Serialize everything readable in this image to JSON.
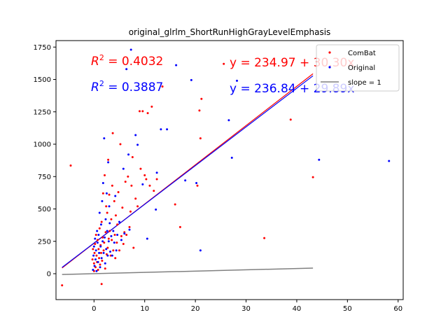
{
  "chart_data": {
    "type": "scatter",
    "title": "original_glrlm_ShortRunHighGrayLevelEmphasis",
    "xlabel": "",
    "ylabel": "",
    "xlim": [
      -7.5,
      61
    ],
    "ylim": [
      -200,
      1800
    ],
    "xticks": [
      "0",
      "10",
      "20",
      "30",
      "40",
      "50",
      "60"
    ],
    "xtick_values": [
      0,
      10,
      20,
      30,
      40,
      50,
      60
    ],
    "yticks": [
      "0",
      "250",
      "500",
      "750",
      "1000",
      "1250",
      "1500",
      "1750"
    ],
    "ytick_values": [
      0,
      250,
      500,
      750,
      1000,
      1250,
      1500,
      1750
    ],
    "grid": false,
    "legend": {
      "position": "top-right",
      "entries": [
        "ComBat",
        "Original",
        "slope = 1"
      ]
    },
    "annotations": [
      {
        "id": "r2-combat",
        "prefix": "R",
        "sup": "2",
        "text": " = 0.4032",
        "color": "#ff0000"
      },
      {
        "id": "r2-original",
        "prefix": "R",
        "sup": "2",
        "text": " = 0.3887",
        "color": "#0000ff"
      },
      {
        "id": "eq-combat",
        "text": "y = 234.97 + 30.30x",
        "color": "#ff0000"
      },
      {
        "id": "eq-original",
        "text": "y = 236.84 + 29.89x",
        "color": "#0000ff"
      }
    ],
    "series": [
      {
        "name": "ComBat",
        "kind": "scatter",
        "color": "#ff0000",
        "points": [
          [
            -6.3,
            -90
          ],
          [
            -4.6,
            835
          ],
          [
            -0.3,
            110
          ],
          [
            -0.2,
            190
          ],
          [
            0,
            20
          ],
          [
            0,
            80
          ],
          [
            0.1,
            160
          ],
          [
            0.2,
            230
          ],
          [
            0.3,
            50
          ],
          [
            0.4,
            300
          ],
          [
            0.5,
            140
          ],
          [
            0.6,
            90
          ],
          [
            0.7,
            260
          ],
          [
            0.8,
            30
          ],
          [
            0.9,
            190
          ],
          [
            1,
            120
          ],
          [
            1.1,
            350
          ],
          [
            1.2,
            70
          ],
          [
            1.3,
            220
          ],
          [
            1.4,
            160
          ],
          [
            1.5,
            400
          ],
          [
            1.5,
            -80
          ],
          [
            1.6,
            100
          ],
          [
            1.7,
            280
          ],
          [
            1.8,
            620
          ],
          [
            1.9,
            180
          ],
          [
            2,
            240
          ],
          [
            2.1,
            760
          ],
          [
            2.2,
            40
          ],
          [
            2.3,
            320
          ],
          [
            2.4,
            520
          ],
          [
            2.5,
            150
          ],
          [
            2.6,
            470
          ],
          [
            2.7,
            200
          ],
          [
            2.8,
            880
          ],
          [
            2.9,
            270
          ],
          [
            3,
            610
          ],
          [
            3.1,
            330
          ],
          [
            3.3,
            140
          ],
          [
            3.4,
            420
          ],
          [
            3.5,
            260
          ],
          [
            3.6,
            680
          ],
          [
            3.7,
            1085
          ],
          [
            3.8,
            180
          ],
          [
            4,
            560
          ],
          [
            4.1,
            300
          ],
          [
            4.2,
            120
          ],
          [
            4.3,
            450
          ],
          [
            4.5,
            240
          ],
          [
            4.6,
            380
          ],
          [
            4.8,
            630
          ],
          [
            5,
            180
          ],
          [
            5.2,
            1000
          ],
          [
            5.4,
            290
          ],
          [
            5.6,
            510
          ],
          [
            5.8,
            230
          ],
          [
            6,
            320
          ],
          [
            6.2,
            710
          ],
          [
            6.4,
            300
          ],
          [
            6.7,
            750
          ],
          [
            7,
            360
          ],
          [
            7.2,
            480
          ],
          [
            7.4,
            680
          ],
          [
            7.6,
            900
          ],
          [
            7.8,
            200
          ],
          [
            8.2,
            580
          ],
          [
            8.6,
            520
          ],
          [
            9,
            1255
          ],
          [
            9.2,
            810
          ],
          [
            9.6,
            1255
          ],
          [
            10,
            760
          ],
          [
            10.3,
            730
          ],
          [
            10.6,
            1240
          ],
          [
            11,
            680
          ],
          [
            11.4,
            1290
          ],
          [
            11.8,
            640
          ],
          [
            12.4,
            730
          ],
          [
            13.5,
            1445
          ],
          [
            16,
            535
          ],
          [
            17,
            360
          ],
          [
            20.4,
            680
          ],
          [
            20.8,
            1260
          ],
          [
            21,
            1045
          ],
          [
            21.2,
            1350
          ],
          [
            25.6,
            1620
          ],
          [
            33.6,
            275
          ],
          [
            38.8,
            1190
          ],
          [
            43.2,
            745
          ]
        ]
      },
      {
        "name": "Original",
        "kind": "scatter",
        "color": "#0000ff",
        "points": [
          [
            -0.2,
            30
          ],
          [
            -0.1,
            140
          ],
          [
            0,
            210
          ],
          [
            0.1,
            60
          ],
          [
            0.2,
            270
          ],
          [
            0.3,
            110
          ],
          [
            0.4,
            180
          ],
          [
            0.5,
            20
          ],
          [
            0.6,
            330
          ],
          [
            0.7,
            240
          ],
          [
            0.8,
            90
          ],
          [
            0.9,
            300
          ],
          [
            1,
            160
          ],
          [
            1.1,
            470
          ],
          [
            1.2,
            50
          ],
          [
            1.3,
            210
          ],
          [
            1.4,
            380
          ],
          [
            1.5,
            120
          ],
          [
            1.6,
            560
          ],
          [
            1.7,
            250
          ],
          [
            1.8,
            700
          ],
          [
            1.9,
            160
          ],
          [
            2,
            1045
          ],
          [
            2.1,
            280
          ],
          [
            2.2,
            80
          ],
          [
            2.3,
            420
          ],
          [
            2.4,
            190
          ],
          [
            2.5,
            620
          ],
          [
            2.6,
            330
          ],
          [
            2.7,
            140
          ],
          [
            2.8,
            860
          ],
          [
            2.9,
            250
          ],
          [
            3,
            520
          ],
          [
            3.1,
            390
          ],
          [
            3.2,
            170
          ],
          [
            3.4,
            290
          ],
          [
            3.6,
            140
          ],
          [
            3.8,
            330
          ],
          [
            4,
            240
          ],
          [
            4.2,
            600
          ],
          [
            4.4,
            180
          ],
          [
            4.6,
            300
          ],
          [
            5,
            400
          ],
          [
            5.4,
            260
          ],
          [
            5.8,
            810
          ],
          [
            6,
            310
          ],
          [
            6.4,
            1580
          ],
          [
            6.8,
            920
          ],
          [
            7,
            340
          ],
          [
            7.3,
            1730
          ],
          [
            8.2,
            1070
          ],
          [
            8.6,
            995
          ],
          [
            9.6,
            690
          ],
          [
            10.5,
            270
          ],
          [
            12.2,
            495
          ],
          [
            12.4,
            780
          ],
          [
            13.2,
            1115
          ],
          [
            14.4,
            1115
          ],
          [
            16.2,
            1610
          ],
          [
            18,
            720
          ],
          [
            19.2,
            1495
          ],
          [
            20.2,
            700
          ],
          [
            21,
            180
          ],
          [
            26.6,
            1185
          ],
          [
            27.2,
            895
          ],
          [
            28.2,
            1490
          ],
          [
            44.4,
            880
          ],
          [
            58.2,
            870
          ]
        ]
      },
      {
        "name": "ComBat fit",
        "kind": "line",
        "color": "#ff0000",
        "intercept": 234.97,
        "slope": 30.3,
        "x_range": [
          -6.3,
          43.2
        ]
      },
      {
        "name": "Original fit",
        "kind": "line",
        "color": "#0000ff",
        "intercept": 236.84,
        "slope": 29.89,
        "x_range": [
          -6.3,
          43.2
        ]
      },
      {
        "name": "slope = 1",
        "kind": "line",
        "color": "#808080",
        "intercept": 0,
        "slope": 1,
        "x_range": [
          -6.3,
          43.2
        ]
      }
    ]
  }
}
